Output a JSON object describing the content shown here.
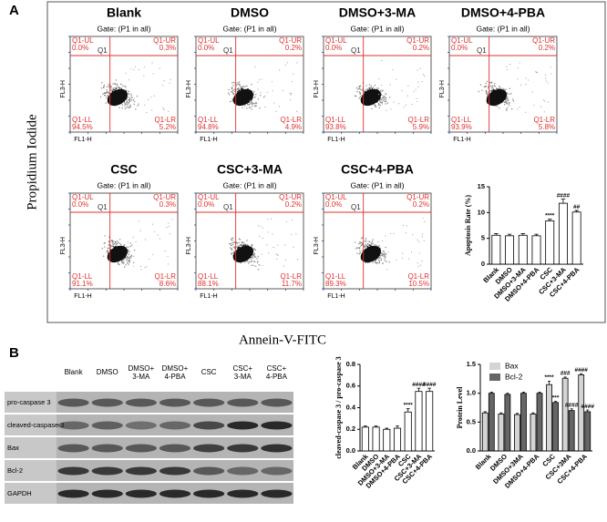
{
  "panel_labels": [
    "A",
    "B"
  ],
  "flow": {
    "y_label": "Propidium Iodide",
    "x_label": "Annein-V-FITC",
    "gate": "Gate: (P1 in all)",
    "axis_y": "FL3-H",
    "axis_x": "FL1-H",
    "quadrant_names": [
      "Q1-UL",
      "Q1-UR",
      "Q1-LL",
      "Q1-LR",
      "Q1"
    ],
    "plots": [
      {
        "title": "Blank",
        "ul": "0.0%",
        "ur": "0.3%",
        "ll": "94.5%",
        "lr": "5.2%"
      },
      {
        "title": "DMSO",
        "ul": "0.0%",
        "ur": "0.2%",
        "ll": "94.8%",
        "lr": "4.9%"
      },
      {
        "title": "DMSO+3-MA",
        "ul": "0.0%",
        "ur": "0.2%",
        "ll": "93.8%",
        "lr": "5.9%"
      },
      {
        "title": "DMSO+4-PBA",
        "ul": "0.0%",
        "ur": "0.2%",
        "ll": "93.9%",
        "lr": "5.8%"
      },
      {
        "title": "CSC",
        "ul": "0.0%",
        "ur": "0.3%",
        "ll": "91.1%",
        "lr": "8.6%"
      },
      {
        "title": "CSC+3-MA",
        "ul": "0.0%",
        "ur": "0.2%",
        "ll": "88.1%",
        "lr": "11.7%"
      },
      {
        "title": "CSC+4-PBA",
        "ul": "0.0%",
        "ur": "0.2%",
        "ll": "89.3%",
        "lr": "10.5%"
      }
    ]
  },
  "western_blot": {
    "columns": [
      [
        "Blank"
      ],
      [
        "DMSO"
      ],
      [
        "DMSO+",
        "3-MA"
      ],
      [
        "DMSO+",
        "4-PBA"
      ],
      [
        "CSC"
      ],
      [
        "CSC+",
        "3-MA"
      ],
      [
        "CSC+",
        "4-PBA"
      ]
    ],
    "rows": [
      "pro-caspase 3",
      "cleaved-caspase 3",
      "Bax",
      "Bcl-2",
      "GAPDH"
    ]
  },
  "chart_data": [
    {
      "type": "bar",
      "y_label": "Apoptosis Rate (%)",
      "categories": [
        "Blank",
        "DMSO",
        "DMSO+3-MA",
        "DMSO+4-PBA",
        "CSC",
        "CSC+3-MA",
        "CSC+4-PBA"
      ],
      "values": [
        5.6,
        5.5,
        5.6,
        5.5,
        8.4,
        11.8,
        10.1
      ],
      "errors": [
        0.3,
        0.3,
        0.3,
        0.3,
        0.3,
        0.8,
        0.3
      ],
      "annotations": [
        null,
        null,
        null,
        null,
        "****",
        "####",
        "##"
      ],
      "color": "#ffffff",
      "ylim": [
        0,
        15
      ],
      "yticks": [
        0,
        5,
        10,
        15
      ]
    },
    {
      "type": "bar",
      "y_label": "cleaved-caspase 3 / pro-caspase 3",
      "categories": [
        "Blank",
        "DMSO",
        "DMSO+3-MA",
        "DMSO+4-PBA",
        "CSC",
        "CSC+3-MA",
        "CSC+4-PBA"
      ],
      "values": [
        0.22,
        0.22,
        0.2,
        0.21,
        0.36,
        0.55,
        0.55
      ],
      "errors": [
        0.01,
        0.01,
        0.01,
        0.02,
        0.03,
        0.03,
        0.03
      ],
      "annotations": [
        null,
        null,
        null,
        null,
        "****",
        "####",
        "####"
      ],
      "color": "#ffffff",
      "ylim": [
        0,
        0.8
      ],
      "yticks": [
        {
          "value": 0,
          "label": "0.0"
        },
        0.2,
        0.4,
        0.6,
        0.8
      ]
    },
    {
      "type": "grouped_bar",
      "y_label": "Protein Level",
      "categories": [
        "Blank",
        "DMSO",
        "DMSO+3MA",
        "DMSO+4-PBA",
        "CSC",
        "CSC+3MA",
        "CSC+4-PBA"
      ],
      "series": [
        {
          "name": "Bax",
          "color": "#d4d4d4",
          "values": [
            0.66,
            0.64,
            0.63,
            0.64,
            1.15,
            1.26,
            1.32
          ],
          "errors": [
            0.02,
            0.02,
            0.02,
            0.02,
            0.06,
            0.02,
            0.02
          ],
          "annotations": [
            null,
            null,
            null,
            null,
            "****",
            "###",
            "####"
          ]
        },
        {
          "name": "Bcl-2",
          "color": "#666666",
          "values": [
            1.0,
            0.98,
            1.0,
            1.0,
            0.84,
            0.7,
            0.68
          ],
          "errors": [
            0.02,
            0.02,
            0.02,
            0.02,
            0.02,
            0.03,
            0.03
          ],
          "annotations": [
            null,
            null,
            null,
            null,
            "***",
            "####",
            "####"
          ]
        }
      ],
      "ylim": [
        0,
        1.5
      ],
      "yticks": [
        {
          "value": 0,
          "label": "0.0"
        },
        0.5,
        {
          "value": 1,
          "label": "1.0"
        },
        1.5
      ],
      "legend": "upper-left"
    }
  ]
}
